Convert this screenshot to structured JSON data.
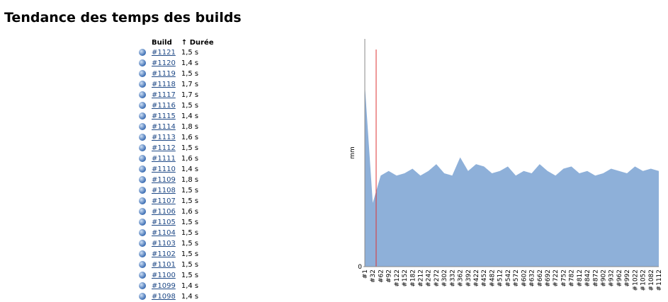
{
  "header": {
    "title": "Tendance des temps des builds"
  },
  "table": {
    "columns": [
      "Build",
      "↑ Durée"
    ],
    "rows": [
      [
        "#1121",
        "1,5 s"
      ],
      [
        "#1120",
        "1,4 s"
      ],
      [
        "#1119",
        "1,5 s"
      ],
      [
        "#1118",
        "1,7 s"
      ],
      [
        "#1117",
        "1,7 s"
      ],
      [
        "#1116",
        "1,5 s"
      ],
      [
        "#1115",
        "1,4 s"
      ],
      [
        "#1114",
        "1,8 s"
      ],
      [
        "#1113",
        "1,6 s"
      ],
      [
        "#1112",
        "1,5 s"
      ],
      [
        "#1111",
        "1,6 s"
      ],
      [
        "#1110",
        "1,4 s"
      ],
      [
        "#1109",
        "1,8 s"
      ],
      [
        "#1108",
        "1,5 s"
      ],
      [
        "#1107",
        "1,5 s"
      ],
      [
        "#1106",
        "1,6 s"
      ],
      [
        "#1105",
        "1,5 s"
      ],
      [
        "#1104",
        "1,5 s"
      ],
      [
        "#1103",
        "1,5 s"
      ],
      [
        "#1102",
        "1,5 s"
      ],
      [
        "#1101",
        "1,5 s"
      ],
      [
        "#1100",
        "1,5 s"
      ],
      [
        "#1099",
        "1,4 s"
      ],
      [
        "#1098",
        "1,4 s"
      ]
    ]
  },
  "chart_data": {
    "type": "area",
    "y_label": "mm",
    "categories": [
      "#1",
      "#32",
      "#62",
      "#92",
      "#122",
      "#152",
      "#182",
      "#212",
      "#242",
      "#272",
      "#302",
      "#332",
      "#362",
      "#392",
      "#422",
      "#452",
      "#482",
      "#512",
      "#542",
      "#572",
      "#602",
      "#632",
      "#662",
      "#692",
      "#722",
      "#752",
      "#782",
      "#812",
      "#842",
      "#872",
      "#902",
      "#932",
      "#962",
      "#992",
      "#1022",
      "#1052",
      "#1082",
      "#1112"
    ],
    "series": [
      {
        "color": "#8eb0d9",
        "values": [
          80,
          28,
          40,
          42,
          40,
          41,
          43,
          40,
          42,
          45,
          41,
          40,
          48,
          42,
          45,
          44,
          41,
          42,
          44,
          40,
          42,
          41,
          45,
          42,
          40,
          43,
          44,
          41,
          42,
          40,
          41,
          43,
          42,
          41,
          44,
          42,
          43,
          42
        ]
      }
    ],
    "ylim": [
      0,
      100
    ],
    "yticks": [
      0
    ]
  }
}
